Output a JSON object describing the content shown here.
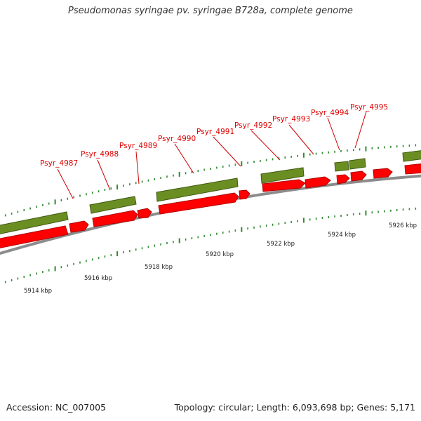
{
  "title": "Pseudomonas syringae pv. syringae B728a, complete genome",
  "footer": {
    "accession": "Accession: NC_007005",
    "summary": "Topology: circular; Length: 6,093,698 bp; Genes: 5,171"
  },
  "colors": {
    "gene_label": "#dd0000",
    "forward_gene": "#ff0000",
    "reverse_gene": "#6b8e23",
    "backbone": "#8c8c8c",
    "tick": "#2e8b2e"
  },
  "genes": [
    {
      "label": "Psyr_4987"
    },
    {
      "label": "Psyr_4988"
    },
    {
      "label": "Psyr_4989"
    },
    {
      "label": "Psyr_4990"
    },
    {
      "label": "Psyr_4991"
    },
    {
      "label": "Psyr_4992"
    },
    {
      "label": "Psyr_4993"
    },
    {
      "label": "Psyr_4994"
    },
    {
      "label": "Psyr_4995"
    }
  ],
  "scale_labels": [
    "5914 kbp",
    "5916 kbp",
    "5918 kbp",
    "5920 kbp",
    "5922 kbp",
    "5924 kbp",
    "5926 kbp"
  ]
}
